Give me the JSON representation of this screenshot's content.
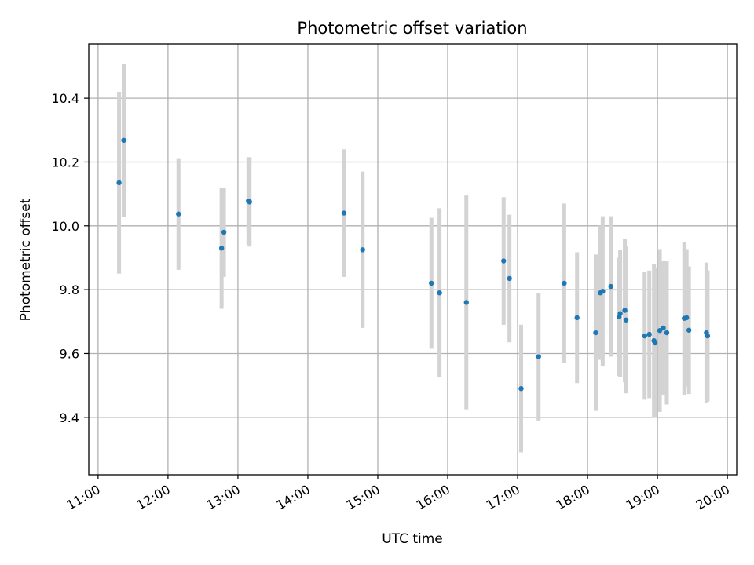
{
  "chart_data": {
    "type": "scatter",
    "title": "Photometric offset variation",
    "xlabel": "UTC time",
    "ylabel": "Photometric offset",
    "x_axis_type": "time",
    "xlim": [
      "10:52",
      "20:08"
    ],
    "ylim": [
      9.22,
      10.57
    ],
    "x_ticks": [
      "11:00",
      "12:00",
      "13:00",
      "14:00",
      "15:00",
      "16:00",
      "17:00",
      "18:00",
      "19:00",
      "20:00"
    ],
    "y_ticks": [
      9.4,
      9.6,
      9.8,
      10.0,
      10.2,
      10.4
    ],
    "y_tick_labels": [
      "9.4",
      "9.6",
      "9.8",
      "10.0",
      "10.2",
      "10.4"
    ],
    "grid": true,
    "point_color": "#1f77b4",
    "errorbar_color": "#d3d3d3",
    "series": [
      {
        "points": [
          {
            "x": "11:18",
            "y": 10.135,
            "err": 0.285
          },
          {
            "x": "11:22",
            "y": 10.268,
            "err": 0.24
          },
          {
            "x": "12:09",
            "y": 10.037,
            "err": 0.175
          },
          {
            "x": "12:46",
            "y": 9.93,
            "err": 0.19
          },
          {
            "x": "12:48",
            "y": 9.98,
            "err": 0.14
          },
          {
            "x": "13:09",
            "y": 10.078,
            "err": 0.137
          },
          {
            "x": "13:10",
            "y": 10.075,
            "err": 0.14
          },
          {
            "x": "14:31",
            "y": 10.04,
            "err": 0.2
          },
          {
            "x": "14:47",
            "y": 9.925,
            "err": 0.245
          },
          {
            "x": "15:46",
            "y": 9.82,
            "err": 0.205
          },
          {
            "x": "15:53",
            "y": 9.79,
            "err": 0.265
          },
          {
            "x": "16:16",
            "y": 9.76,
            "err": 0.335
          },
          {
            "x": "16:48",
            "y": 9.89,
            "err": 0.2
          },
          {
            "x": "16:53",
            "y": 9.835,
            "err": 0.2
          },
          {
            "x": "17:03",
            "y": 9.49,
            "err": 0.2
          },
          {
            "x": "17:18",
            "y": 9.59,
            "err": 0.2
          },
          {
            "x": "17:40",
            "y": 9.82,
            "err": 0.25
          },
          {
            "x": "17:51",
            "y": 9.712,
            "err": 0.205
          },
          {
            "x": "18:07",
            "y": 9.665,
            "err": 0.245
          },
          {
            "x": "18:11",
            "y": 9.79,
            "err": 0.21
          },
          {
            "x": "18:13",
            "y": 9.795,
            "err": 0.235
          },
          {
            "x": "18:20",
            "y": 9.81,
            "err": 0.22
          },
          {
            "x": "18:27",
            "y": 9.715,
            "err": 0.185
          },
          {
            "x": "18:28",
            "y": 9.725,
            "err": 0.2
          },
          {
            "x": "18:32",
            "y": 9.735,
            "err": 0.225
          },
          {
            "x": "18:33",
            "y": 9.705,
            "err": 0.23
          },
          {
            "x": "18:49",
            "y": 9.655,
            "err": 0.2
          },
          {
            "x": "18:53",
            "y": 9.66,
            "err": 0.2
          },
          {
            "x": "18:57",
            "y": 9.64,
            "err": 0.24
          },
          {
            "x": "18:58",
            "y": 9.633,
            "err": 0.235
          },
          {
            "x": "19:02",
            "y": 9.672,
            "err": 0.255
          },
          {
            "x": "19:05",
            "y": 9.68,
            "err": 0.21
          },
          {
            "x": "19:08",
            "y": 9.665,
            "err": 0.225
          },
          {
            "x": "19:23",
            "y": 9.71,
            "err": 0.24
          },
          {
            "x": "19:25",
            "y": 9.712,
            "err": 0.215
          },
          {
            "x": "19:27",
            "y": 9.673,
            "err": 0.2
          },
          {
            "x": "19:42",
            "y": 9.665,
            "err": 0.22
          },
          {
            "x": "19:43",
            "y": 9.655,
            "err": 0.205
          }
        ]
      }
    ]
  }
}
